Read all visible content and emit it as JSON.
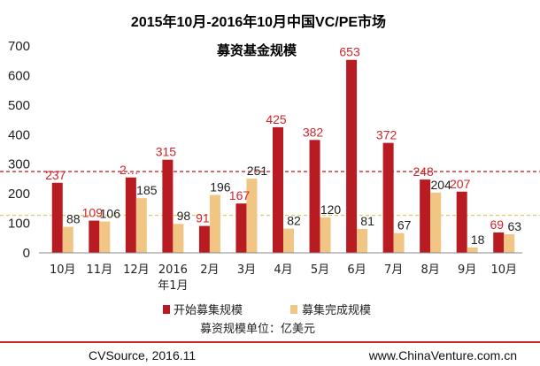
{
  "chart_data": {
    "type": "bar",
    "title": "2015年10月-2016年10月中国VC/PE市场",
    "subtitle": "募资基金规模",
    "categories": [
      [
        "10月"
      ],
      [
        "11月"
      ],
      [
        "12月"
      ],
      [
        "2016",
        "年1月"
      ],
      [
        "2月"
      ],
      [
        "3月"
      ],
      [
        "4月"
      ],
      [
        "5月"
      ],
      [
        "6月"
      ],
      [
        "7月"
      ],
      [
        "8月"
      ],
      [
        "9月"
      ],
      [
        "10月"
      ]
    ],
    "series": [
      {
        "name": "开始募集规模",
        "color": "#b81c22",
        "values": [
          237,
          109,
          255,
          315,
          91,
          167,
          425,
          382,
          653,
          372,
          248,
          207,
          69
        ],
        "labels": [
          "237",
          "109",
          "2…",
          "315",
          "91",
          "167",
          "425",
          "382",
          "653",
          "372",
          "248",
          "207",
          "69"
        ]
      },
      {
        "name": "募集完成规模",
        "color": "#f1c584",
        "values": [
          88,
          106,
          185,
          98,
          196,
          251,
          82,
          120,
          81,
          67,
          204,
          18,
          63
        ],
        "labels": [
          "88",
          "106",
          "185",
          "98",
          "196",
          "251",
          "82",
          "120",
          "81",
          "67",
          "204",
          "18",
          "63"
        ]
      }
    ],
    "yticks": [
      "0",
      "100",
      "200",
      "300",
      "400",
      "500",
      "600",
      "700"
    ],
    "ylim": [
      0,
      700
    ],
    "reference_lines": [
      {
        "value": 275,
        "color": "#d0252a",
        "style": "dashed"
      },
      {
        "value": 127,
        "color": "#d9d26a",
        "style": "dashed"
      }
    ],
    "grid": false,
    "legend_position": "bottom"
  },
  "unit_note": "募资规模单位：亿美元",
  "footer": {
    "source": "CVSource, 2016.11",
    "website": "www.ChinaVenture.com.cn"
  },
  "colors": {
    "footer_line": "#d0252a"
  }
}
